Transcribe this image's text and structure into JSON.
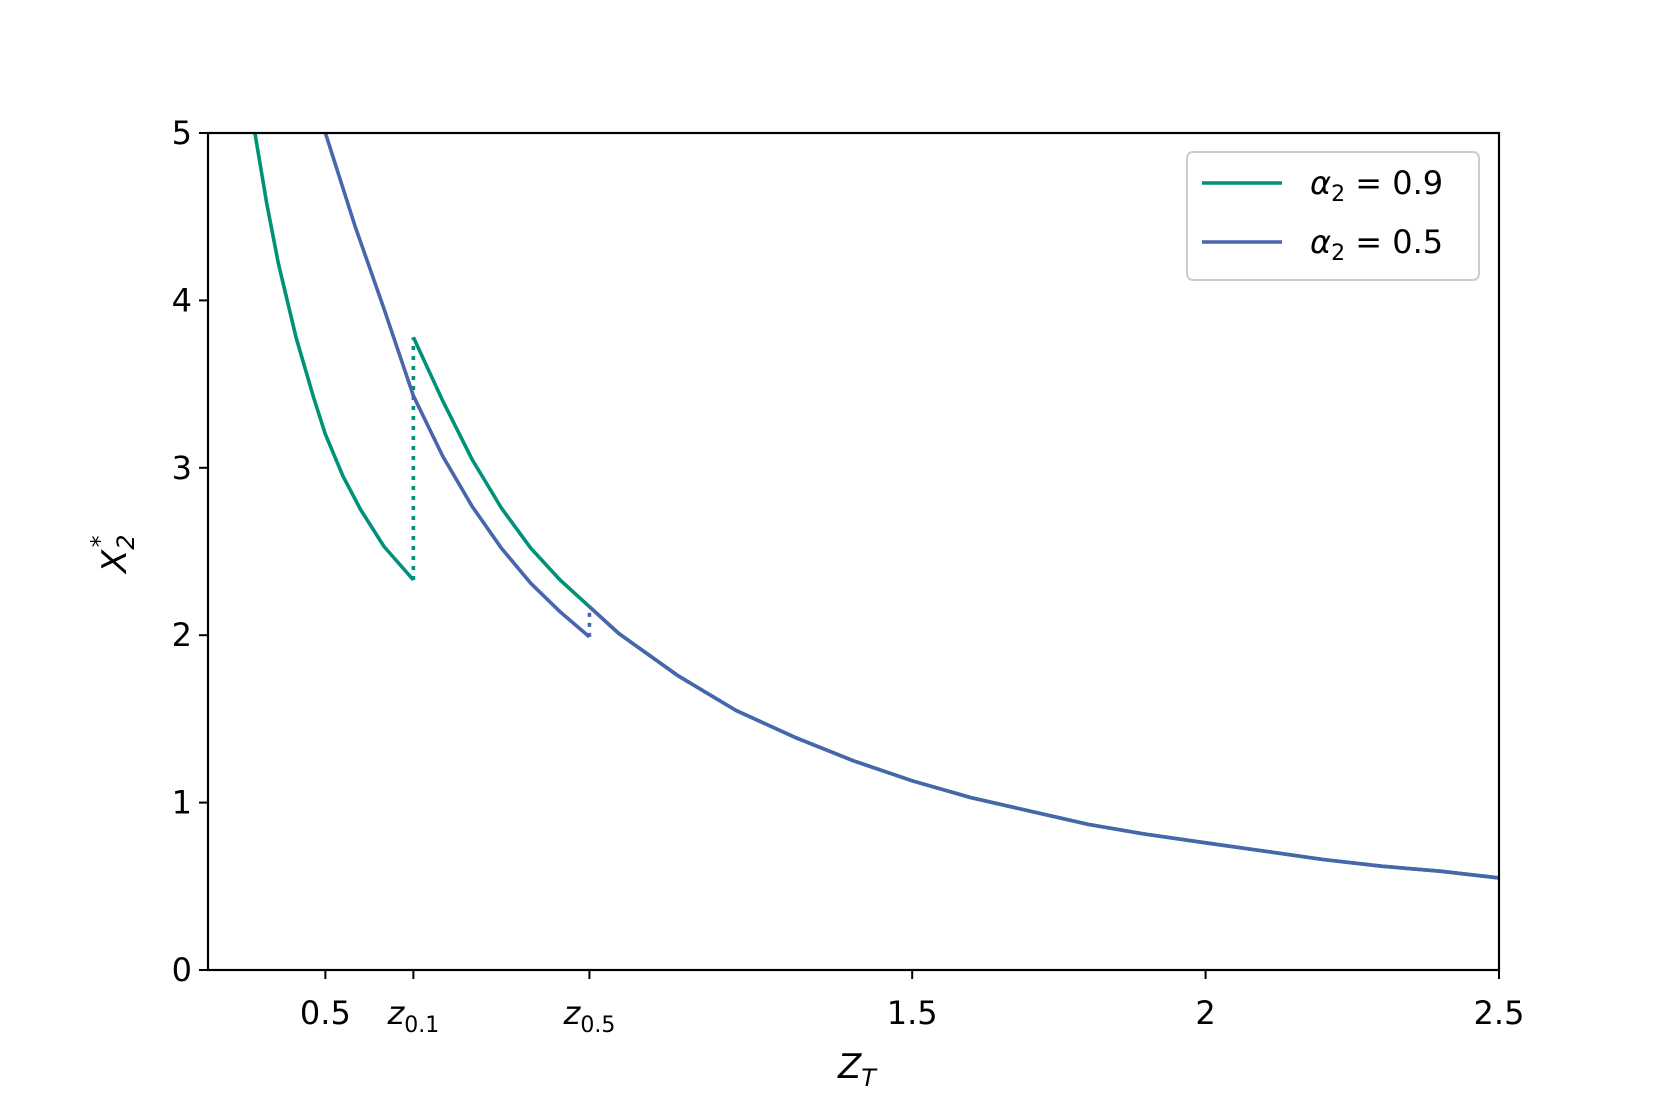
{
  "chart_data": {
    "type": "line",
    "xlabel": "Z",
    "xlabel_sub": "T",
    "ylabel": "X",
    "ylabel_sup": "*",
    "ylabel_sub": "2",
    "xlim": [
      0.3,
      2.5
    ],
    "ylim": [
      0,
      5
    ],
    "xticks": [
      {
        "value": 0.5,
        "label": "0.5"
      },
      {
        "value": 0.65,
        "label": "z",
        "sub": "0.1"
      },
      {
        "value": 0.95,
        "label": "z",
        "sub": "0.5"
      },
      {
        "value": 1.5,
        "label": "1.5"
      },
      {
        "value": 2.0,
        "label": "2"
      },
      {
        "value": 2.5,
        "label": "2.5"
      }
    ],
    "yticks": [
      {
        "value": 0,
        "label": "0"
      },
      {
        "value": 1,
        "label": "1"
      },
      {
        "value": 2,
        "label": "2"
      },
      {
        "value": 3,
        "label": "3"
      },
      {
        "value": 4,
        "label": "4"
      },
      {
        "value": 5,
        "label": "5"
      }
    ],
    "grid": false,
    "legend_position": "top-right",
    "series": [
      {
        "name": "α₂ = 0.9",
        "legend_label": {
          "greek": "α",
          "sub": "2",
          "rest": " = 0.9"
        },
        "color": "#009179",
        "segments": [
          [
            [
              0.38,
              5.0
            ],
            [
              0.4,
              4.58
            ],
            [
              0.42,
              4.22
            ],
            [
              0.45,
              3.78
            ],
            [
              0.48,
              3.42
            ],
            [
              0.5,
              3.2
            ],
            [
              0.53,
              2.95
            ],
            [
              0.56,
              2.75
            ],
            [
              0.6,
              2.53
            ],
            [
              0.65,
              2.33
            ]
          ],
          [
            [
              0.65,
              3.78
            ],
            [
              0.7,
              3.4
            ],
            [
              0.75,
              3.05
            ],
            [
              0.8,
              2.76
            ],
            [
              0.85,
              2.52
            ],
            [
              0.9,
              2.33
            ],
            [
              0.95,
              2.17
            ],
            [
              1.0,
              2.01
            ],
            [
              1.1,
              1.76
            ],
            [
              1.2,
              1.55
            ],
            [
              1.3,
              1.39
            ],
            [
              1.4,
              1.25
            ],
            [
              1.5,
              1.13
            ],
            [
              1.6,
              1.03
            ],
            [
              1.7,
              0.95
            ],
            [
              1.8,
              0.87
            ],
            [
              1.9,
              0.81
            ],
            [
              2.0,
              0.76
            ],
            [
              2.1,
              0.71
            ],
            [
              2.2,
              0.66
            ],
            [
              2.3,
              0.62
            ],
            [
              2.4,
              0.59
            ],
            [
              2.5,
              0.55
            ]
          ]
        ],
        "jump": {
          "x": 0.65,
          "from": 2.33,
          "to": 3.78
        }
      },
      {
        "name": "α₂ = 0.5",
        "legend_label": {
          "greek": "α",
          "sub": "2",
          "rest": " = 0.5"
        },
        "color": "#4766ab",
        "segments": [
          [
            [
              0.5,
              5.0
            ],
            [
              0.55,
              4.45
            ],
            [
              0.6,
              3.95
            ],
            [
              0.65,
              3.43
            ],
            [
              0.7,
              3.07
            ],
            [
              0.75,
              2.77
            ],
            [
              0.8,
              2.52
            ],
            [
              0.85,
              2.31
            ],
            [
              0.9,
              2.14
            ],
            [
              0.95,
              1.99
            ]
          ],
          [
            [
              0.95,
              2.17
            ],
            [
              1.0,
              2.01
            ],
            [
              1.1,
              1.76
            ],
            [
              1.2,
              1.55
            ],
            [
              1.3,
              1.39
            ],
            [
              1.4,
              1.25
            ],
            [
              1.5,
              1.13
            ],
            [
              1.6,
              1.03
            ],
            [
              1.7,
              0.95
            ],
            [
              1.8,
              0.87
            ],
            [
              1.9,
              0.81
            ],
            [
              2.0,
              0.76
            ],
            [
              2.1,
              0.71
            ],
            [
              2.2,
              0.66
            ],
            [
              2.3,
              0.62
            ],
            [
              2.4,
              0.59
            ],
            [
              2.5,
              0.55
            ]
          ]
        ],
        "jump": {
          "x": 0.95,
          "from": 1.99,
          "to": 2.17
        }
      }
    ]
  }
}
